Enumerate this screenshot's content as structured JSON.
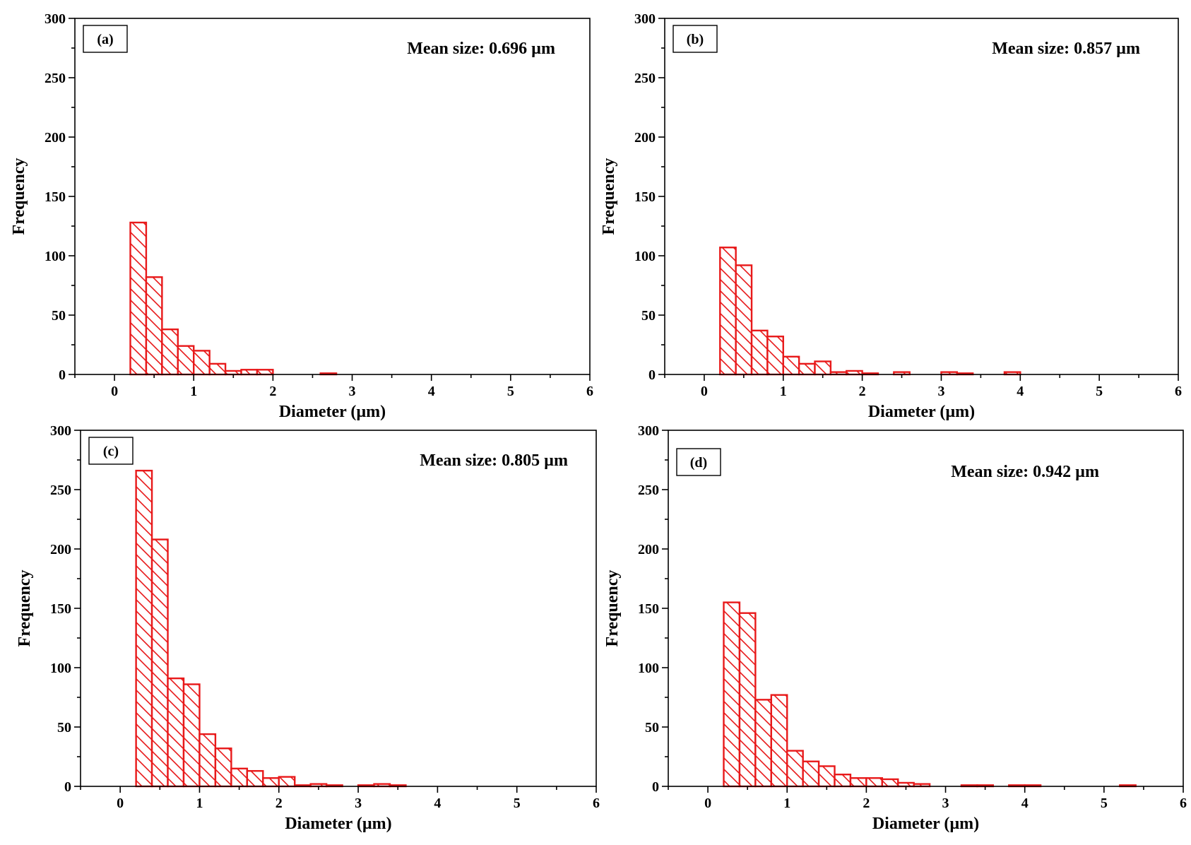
{
  "colors": {
    "bar": "#e8191a",
    "axis": "#000000",
    "background": "#ffffff"
  },
  "chart_data": [
    {
      "type": "bar",
      "panel_label": "(a)",
      "annotation": "Mean size: 0.696 µm",
      "xlabel": "Diameter (µm)",
      "ylabel": "Frequency",
      "xlim": [
        -0.5,
        6
      ],
      "ylim": [
        0,
        300
      ],
      "xticks": [
        0,
        1,
        2,
        3,
        4,
        5,
        6
      ],
      "yticks": [
        0,
        50,
        100,
        150,
        200,
        250,
        300
      ],
      "bin_width": 0.2,
      "bin_starts": [
        0.2,
        0.4,
        0.6,
        0.8,
        1.0,
        1.2,
        1.4,
        1.6,
        1.8,
        2.6
      ],
      "values": [
        128,
        82,
        38,
        24,
        20,
        9,
        3,
        4,
        4,
        1
      ]
    },
    {
      "type": "bar",
      "panel_label": "(b)",
      "annotation": "Mean size: 0.857 µm",
      "xlabel": "Diameter (µm)",
      "ylabel": "Frequency",
      "xlim": [
        -0.5,
        6
      ],
      "ylim": [
        0,
        300
      ],
      "xticks": [
        0,
        1,
        2,
        3,
        4,
        5,
        6
      ],
      "yticks": [
        0,
        50,
        100,
        150,
        200,
        250,
        300
      ],
      "bin_width": 0.2,
      "bin_starts": [
        0.2,
        0.4,
        0.6,
        0.8,
        1.0,
        1.2,
        1.4,
        1.6,
        1.8,
        2.0,
        2.4,
        3.0,
        3.2,
        3.8
      ],
      "values": [
        107,
        92,
        37,
        32,
        15,
        9,
        11,
        2,
        3,
        1,
        2,
        2,
        1,
        2
      ]
    },
    {
      "type": "bar",
      "panel_label": "(c)",
      "annotation": "Mean size: 0.805 µm",
      "xlabel": "Diameter (µm)",
      "ylabel": "Frequency",
      "xlim": [
        -0.5,
        6
      ],
      "ylim": [
        0,
        300
      ],
      "xticks": [
        0,
        1,
        2,
        3,
        4,
        5,
        6
      ],
      "yticks": [
        0,
        50,
        100,
        150,
        200,
        250,
        300
      ],
      "bin_width": 0.2,
      "bin_starts": [
        0.2,
        0.4,
        0.6,
        0.8,
        1.0,
        1.2,
        1.4,
        1.6,
        1.8,
        2.0,
        2.2,
        2.4,
        2.6,
        3.0,
        3.2,
        3.4
      ],
      "values": [
        266,
        208,
        91,
        86,
        44,
        32,
        15,
        13,
        7,
        8,
        1,
        2,
        1,
        1,
        2,
        1
      ]
    },
    {
      "type": "bar",
      "panel_label": "(d)",
      "annotation": "Mean size: 0.942 µm",
      "xlabel": "Diameter (µm)",
      "ylabel": "Frequency",
      "xlim": [
        -0.5,
        6
      ],
      "ylim": [
        0,
        300
      ],
      "xticks": [
        0,
        1,
        2,
        3,
        4,
        5,
        6
      ],
      "yticks": [
        0,
        50,
        100,
        150,
        200,
        250,
        300
      ],
      "bin_width": 0.2,
      "bin_starts": [
        0.2,
        0.4,
        0.6,
        0.8,
        1.0,
        1.2,
        1.4,
        1.6,
        1.8,
        2.0,
        2.2,
        2.4,
        2.6,
        3.2,
        3.4,
        3.8,
        4.0,
        5.2
      ],
      "values": [
        155,
        146,
        73,
        77,
        30,
        21,
        17,
        10,
        7,
        7,
        6,
        3,
        2,
        1,
        1,
        1,
        1,
        1
      ]
    }
  ]
}
